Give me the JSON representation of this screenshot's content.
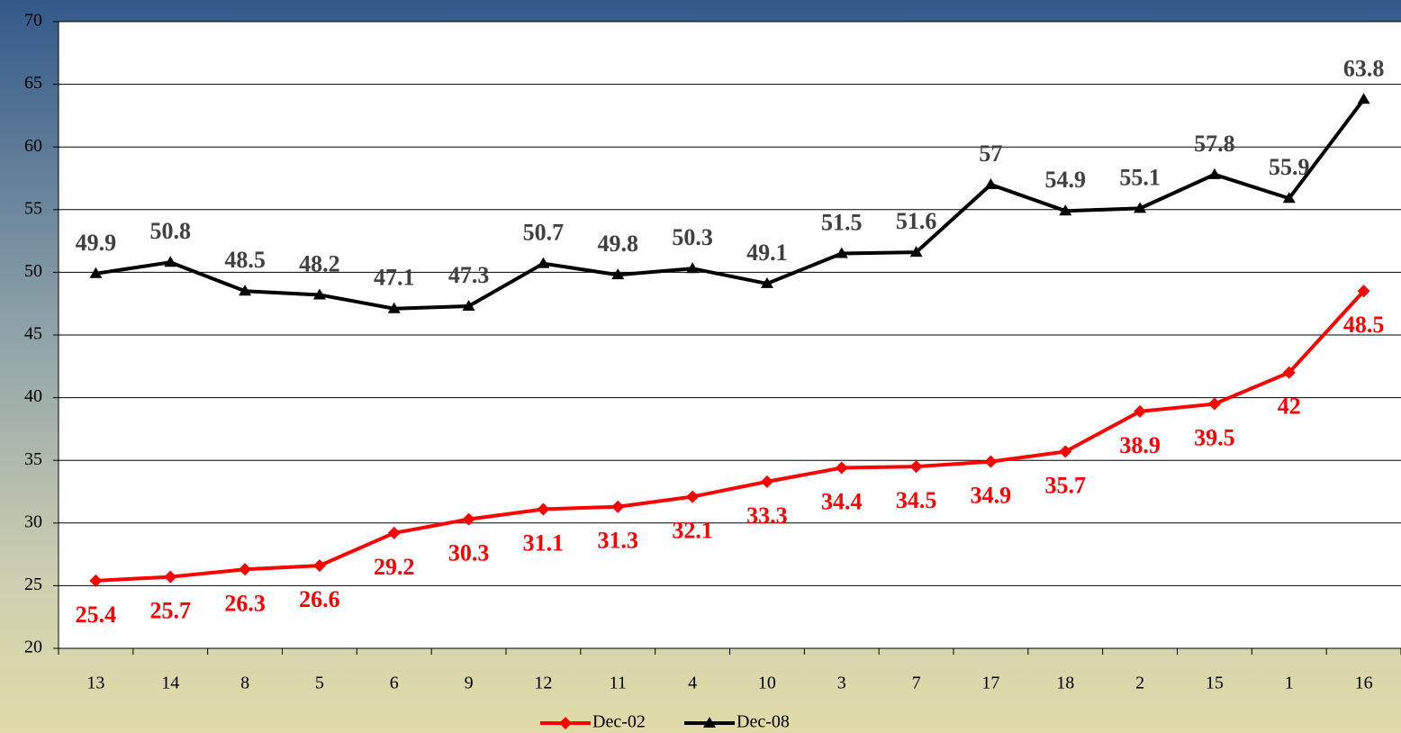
{
  "chart_data": {
    "type": "line",
    "categories": [
      "13",
      "14",
      "8",
      "5",
      "6",
      "9",
      "12",
      "11",
      "4",
      "10",
      "3",
      "7",
      "17",
      "18",
      "2",
      "15",
      "1",
      "16"
    ],
    "series": [
      {
        "name": "Dec-02",
        "color": "#ff0000",
        "marker": "diamond",
        "label_position": "below",
        "values": [
          25.4,
          25.7,
          26.3,
          26.6,
          29.2,
          30.3,
          31.1,
          31.3,
          32.1,
          33.3,
          34.4,
          34.5,
          34.9,
          35.7,
          38.9,
          39.5,
          42,
          48.5
        ]
      },
      {
        "name": "Dec-08",
        "color": "#000000",
        "marker": "triangle",
        "label_position": "above",
        "values": [
          49.9,
          50.8,
          48.5,
          48.2,
          47.1,
          47.3,
          50.7,
          49.8,
          50.3,
          49.1,
          51.5,
          51.6,
          57,
          54.9,
          55.1,
          57.8,
          55.9,
          63.8
        ]
      }
    ],
    "ylim": [
      20,
      70
    ],
    "yticks": [
      20,
      25,
      30,
      35,
      40,
      45,
      50,
      55,
      60,
      65,
      70
    ],
    "grid": true,
    "legend": "bottom"
  }
}
